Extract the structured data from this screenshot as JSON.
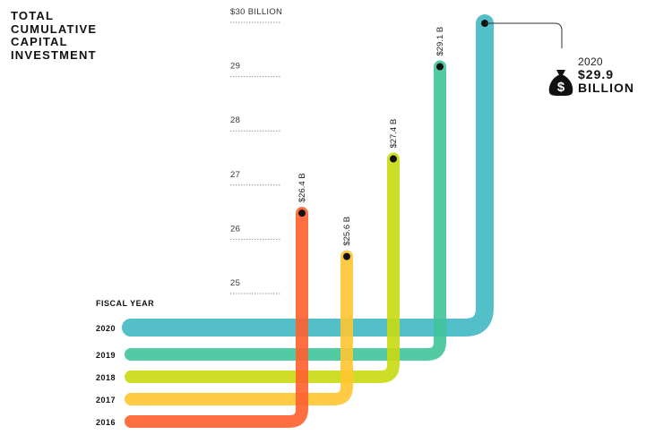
{
  "title": "TOTAL\nCUMULATIVE\nCAPITAL\nINVESTMENT",
  "callout": {
    "year": "2020",
    "amount_line1": "$29.9",
    "amount_line2": "BILLION",
    "icon": "money-bag-icon"
  },
  "chart_data": {
    "type": "line",
    "title": "TOTAL CUMULATIVE CAPITAL INVESTMENT",
    "ylabel": "",
    "xlabel": "FISCAL YEAR",
    "ylim": [
      25,
      30
    ],
    "y_ticks": [
      {
        "value": 25,
        "label": "25"
      },
      {
        "value": 26,
        "label": "26"
      },
      {
        "value": 27,
        "label": "27"
      },
      {
        "value": 28,
        "label": "28"
      },
      {
        "value": 29,
        "label": "29"
      },
      {
        "value": 30,
        "label": "$30 BILLION"
      }
    ],
    "axis_title": "FISCAL YEAR",
    "series": [
      {
        "year": "2016",
        "value": 26.4,
        "label": "$26.4 B",
        "color": "#ff5f2e"
      },
      {
        "year": "2017",
        "value": 25.6,
        "label": "$25.6 B",
        "color": "#ffc531"
      },
      {
        "year": "2018",
        "value": 27.4,
        "label": "$27.4 B",
        "color": "#c9d90f"
      },
      {
        "year": "2019",
        "value": 29.1,
        "label": "$29.1 B",
        "color": "#3fc49a"
      },
      {
        "year": "2020",
        "value": 29.9,
        "label": "",
        "color": "#3fb8c3"
      }
    ]
  }
}
